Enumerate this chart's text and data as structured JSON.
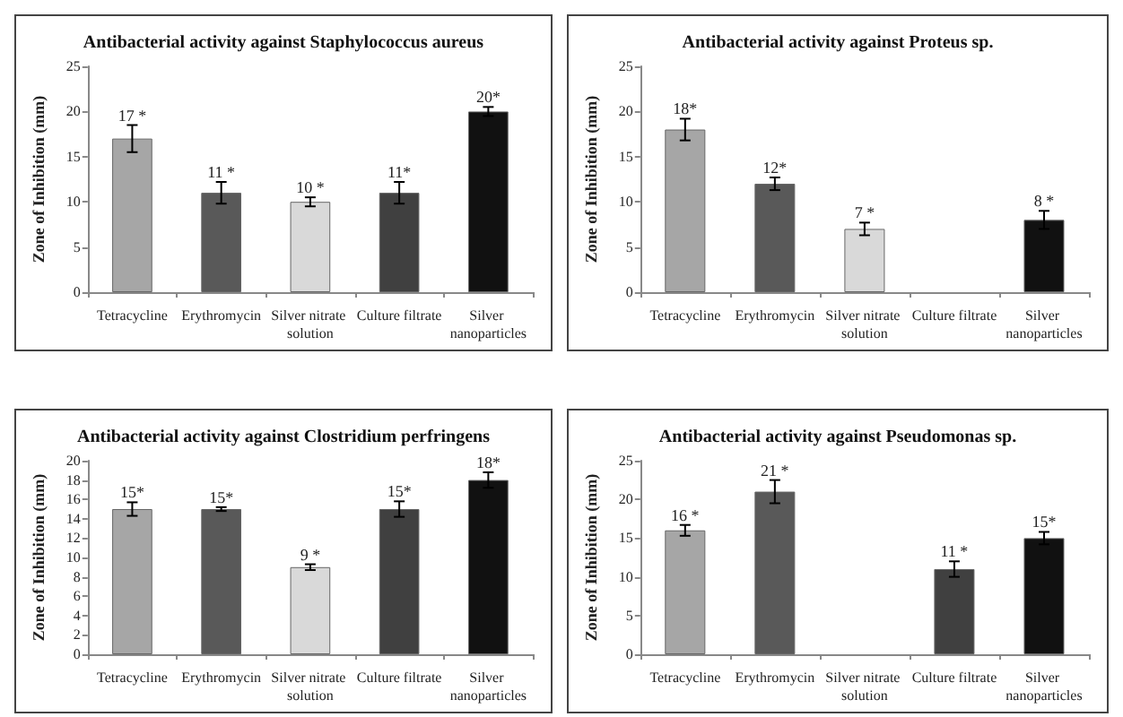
{
  "chart_data": [
    {
      "type": "bar",
      "title": "Antibacterial activity against Staphylococcus aureus",
      "ylabel": "Zone of Inhibition (mm)",
      "categories": [
        "Tetracycline",
        "Erythromycin",
        "Silver nitrate solution",
        "Culture filtrate",
        "Silver nanoparticles"
      ],
      "values": [
        17,
        11,
        10,
        11,
        20
      ],
      "colors": [
        "#a6a6a6",
        "#595959",
        "#d9d9d9",
        "#404040",
        "#111111"
      ],
      "errors": [
        1.5,
        1.2,
        0.5,
        1.2,
        0.5
      ],
      "value_labels": [
        "17 *",
        "11 *",
        "10 *",
        "11*",
        "20*"
      ],
      "ylim": [
        0,
        25
      ],
      "yticks": [
        0,
        5,
        10,
        15,
        20,
        25
      ]
    },
    {
      "type": "bar",
      "title": "Antibacterial activity against Proteus sp.",
      "ylabel": "Zone of Inhibition (mm)",
      "categories": [
        "Tetracycline",
        "Erythromycin",
        "Silver nitrate solution",
        "Culture filtrate",
        "Silver nanoparticles"
      ],
      "values": [
        18,
        12,
        7,
        null,
        8
      ],
      "colors": [
        "#a6a6a6",
        "#595959",
        "#d9d9d9",
        "#404040",
        "#111111"
      ],
      "errors": [
        1.2,
        0.7,
        0.7,
        null,
        1
      ],
      "value_labels": [
        "18*",
        "12*",
        "7 *",
        null,
        "8 *"
      ],
      "ylim": [
        0,
        25
      ],
      "yticks": [
        0,
        5,
        10,
        15,
        20,
        25
      ]
    },
    {
      "type": "bar",
      "title": "Antibacterial activity against Clostridium perfringens",
      "ylabel": "Zone of Inhibition (mm)",
      "categories": [
        "Tetracycline",
        "Erythromycin",
        "Silver nitrate solution",
        "Culture filtrate",
        "Silver nanoparticles"
      ],
      "values": [
        15,
        15,
        9,
        15,
        18
      ],
      "colors": [
        "#a6a6a6",
        "#595959",
        "#d9d9d9",
        "#404040",
        "#111111"
      ],
      "errors": [
        0.7,
        0.2,
        0.3,
        0.8,
        0.8
      ],
      "value_labels": [
        "15*",
        "15*",
        "9 *",
        "15*",
        "18*"
      ],
      "ylim": [
        0,
        20
      ],
      "yticks": [
        0,
        2,
        4,
        6,
        8,
        10,
        12,
        14,
        16,
        18,
        20
      ]
    },
    {
      "type": "bar",
      "title": "Antibacterial activity against Pseudomonas sp.",
      "ylabel": "Zone of Inhibition (mm)",
      "categories": [
        "Tetracycline",
        "Erythromycin",
        "Silver nitrate solution",
        "Culture filtrate",
        "Silver nanoparticles"
      ],
      "values": [
        16,
        21,
        null,
        11,
        15
      ],
      "colors": [
        "#a6a6a6",
        "#595959",
        "#d9d9d9",
        "#404040",
        "#111111"
      ],
      "errors": [
        0.7,
        1.5,
        null,
        1,
        0.8
      ],
      "value_labels": [
        "16 *",
        "21 *",
        null,
        "11 *",
        "15*"
      ],
      "ylim": [
        0,
        25
      ],
      "yticks": [
        0,
        5,
        10,
        15,
        20,
        25
      ]
    }
  ]
}
